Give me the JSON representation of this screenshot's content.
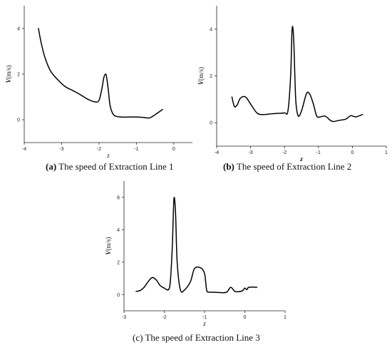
{
  "chart_data": [
    {
      "type": "line",
      "caption_tag": "(a)",
      "caption_text": " The speed of Extraction Line 1",
      "xlabel": "z",
      "ylabel": "V(m/s)",
      "xlim": [
        -4,
        0.5
      ],
      "ylim": [
        -1,
        5
      ],
      "xticks": [
        -4,
        -3,
        -2,
        -1,
        0
      ],
      "yticks": [
        0,
        2,
        4
      ],
      "grid": false,
      "series": [
        {
          "x": [
            -3.62,
            -3.55,
            -3.45,
            -3.3,
            -3.1,
            -2.9,
            -2.7,
            -2.5,
            -2.3,
            -2.1,
            -2.0,
            -1.93,
            -1.87,
            -1.83,
            -1.8,
            -1.75,
            -1.7,
            -1.6,
            -1.4,
            -1.2,
            -1.0,
            -0.8,
            -0.65,
            -0.5,
            -0.3
          ],
          "y": [
            4.0,
            3.4,
            2.75,
            2.15,
            1.75,
            1.45,
            1.28,
            1.1,
            0.9,
            0.78,
            0.85,
            1.3,
            1.85,
            2.0,
            1.9,
            1.3,
            0.6,
            0.2,
            0.12,
            0.12,
            0.12,
            0.1,
            0.08,
            0.22,
            0.45
          ]
        }
      ]
    },
    {
      "type": "line",
      "caption_tag": "(b)",
      "caption_text": " The speed of Extraction Line 2",
      "xlabel": "z",
      "ylabel": "V(m/s)",
      "xlim": [
        -4,
        1
      ],
      "ylim": [
        -1,
        5
      ],
      "xticks": [
        -4,
        -3,
        -2,
        -1,
        0,
        1
      ],
      "yticks": [
        0,
        2,
        4
      ],
      "grid": false,
      "series": [
        {
          "x": [
            -3.55,
            -3.48,
            -3.4,
            -3.3,
            -3.15,
            -3.0,
            -2.8,
            -2.6,
            -2.4,
            -2.2,
            -2.0,
            -1.9,
            -1.82,
            -1.78,
            -1.75,
            -1.72,
            -1.67,
            -1.6,
            -1.5,
            -1.35,
            -1.25,
            -1.15,
            -1.05,
            -0.95,
            -0.8,
            -0.65,
            -0.55,
            -0.4,
            -0.2,
            -0.05,
            0.1,
            0.3
          ],
          "y": [
            1.1,
            0.7,
            0.75,
            1.05,
            1.1,
            0.8,
            0.4,
            0.35,
            0.38,
            0.4,
            0.42,
            0.5,
            2.0,
            3.9,
            4.0,
            3.2,
            1.0,
            0.3,
            0.5,
            1.25,
            1.2,
            0.8,
            0.28,
            0.25,
            0.28,
            0.1,
            0.05,
            0.1,
            0.15,
            0.3,
            0.25,
            0.35
          ]
        }
      ]
    },
    {
      "type": "line",
      "caption_tag": "(c)",
      "caption_text": " The speed of Extraction Line 3",
      "xlabel": "z",
      "ylabel": "V(m/s)",
      "xlim": [
        -3,
        1
      ],
      "ylim": [
        -1,
        7
      ],
      "xticks": [
        -3,
        -2,
        -1,
        0,
        1
      ],
      "yticks": [
        0,
        2,
        4,
        6
      ],
      "grid": false,
      "series": [
        {
          "x": [
            -2.7,
            -2.6,
            -2.5,
            -2.4,
            -2.3,
            -2.2,
            -2.1,
            -2.0,
            -1.9,
            -1.85,
            -1.8,
            -1.76,
            -1.72,
            -1.68,
            -1.6,
            -1.5,
            -1.35,
            -1.25,
            -1.1,
            -1.0,
            -0.95,
            -0.9,
            -0.8,
            -0.6,
            -0.45,
            -0.35,
            -0.25,
            -0.15,
            -0.05,
            0.0,
            0.05,
            0.1,
            0.3
          ],
          "y": [
            0.2,
            0.25,
            0.45,
            0.8,
            1.05,
            0.9,
            0.55,
            0.4,
            0.3,
            0.8,
            3.0,
            5.9,
            5.0,
            2.0,
            0.3,
            0.28,
            0.8,
            1.6,
            1.65,
            1.3,
            0.3,
            0.15,
            0.15,
            0.12,
            0.15,
            0.45,
            0.2,
            0.18,
            0.25,
            0.4,
            0.3,
            0.45,
            0.45
          ]
        }
      ]
    }
  ]
}
